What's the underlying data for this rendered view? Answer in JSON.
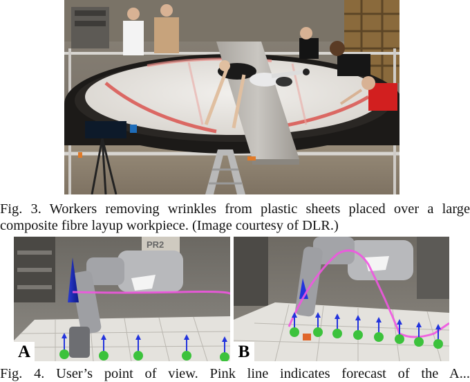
{
  "fig3": {
    "caption_line1": "Fig. 3.   Workers removing wrinkles from plastic sheets placed over a large",
    "caption_line2": "composite fibre layup workpiece. (Image courtesy of DLR.)"
  },
  "fig4": {
    "panel_a_label": "A",
    "panel_b_label": "B",
    "robot_label": "PR2",
    "caption_partial": "Fig. 4.     User’s point of view. Pink line indicates forecast of the A..."
  },
  "colors": {
    "sheet": "#e8e6e2",
    "sheet_red_edge": "#d9534f",
    "frame_dark": "#1c1a18",
    "trajectory": "#f055e0",
    "arrow": "#2233dd",
    "sphere": "#3cc23c"
  }
}
